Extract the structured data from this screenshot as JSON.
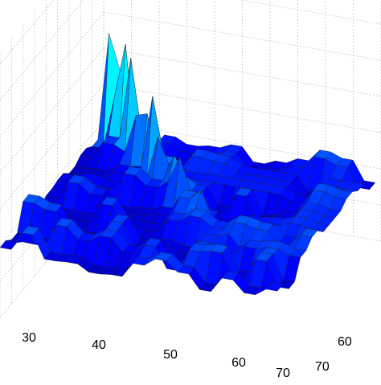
{
  "chart_data": {
    "type": "surface",
    "title": "",
    "xlabel": "",
    "ylabel": "",
    "zlabel": "",
    "x_ticks": [
      "30",
      "40",
      "50",
      "60",
      "70"
    ],
    "y_ticks": [
      "60",
      "70"
    ],
    "x_range": [
      22,
      72
    ],
    "y_range": [
      0,
      72
    ],
    "colormap": "jet",
    "grid": true,
    "box": true,
    "description_peaks": "diagonal ridge of peaks rising along x = y",
    "surface": {
      "x_start": 22,
      "x_step": 2,
      "y_start": 4,
      "y_step": 4,
      "baseline_z": 0.25,
      "ridge_heights": [
        0.95,
        0.9,
        0.85,
        0.8,
        0.75,
        0.7,
        0.66,
        0.62,
        0.58,
        0.55,
        0.52,
        0.5,
        0.48,
        0.46,
        0.44,
        0.42,
        0.4,
        0.38,
        0.36,
        0.34,
        0.32,
        0.3,
        0.28,
        0.26,
        0.24,
        0.22
      ]
    }
  }
}
